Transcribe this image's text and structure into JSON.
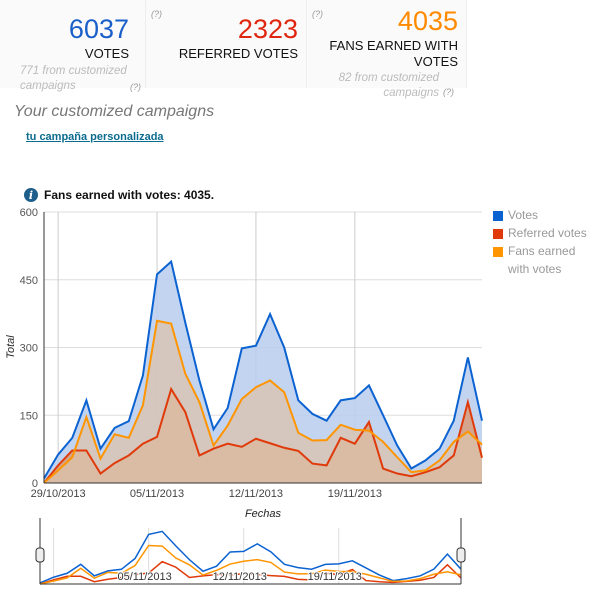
{
  "stats": [
    {
      "value": "6037",
      "label": "VOTES",
      "sub": "771 from customized campaigns",
      "help": "(?)",
      "color": "#1a5fc9"
    },
    {
      "value": "2323",
      "label": "REFERRED VOTES",
      "help": "(?)",
      "color": "#e0260f"
    },
    {
      "value": "4035",
      "label": "FANS EARNED WITH VOTES",
      "sub": "82 from customized campaigns",
      "help": "(?)",
      "help2": "(?)",
      "color": "#ff8a00"
    }
  ],
  "section_title": "Your customized campaigns",
  "campaign_link": "tu campaña personalizada",
  "info_text": "Fans earned with votes: 4035.",
  "icons": {
    "info": "info-icon",
    "handle": "range-handle-icon"
  },
  "chart_data": {
    "type": "area",
    "xlabel": "Fechas",
    "ylabel": "Total",
    "ylim": [
      0,
      600
    ],
    "yticks": [
      0,
      150,
      300,
      450,
      600
    ],
    "x_start": "28/10/2013",
    "x_end": "28/11/2013",
    "xticks": [
      "29/10/2013",
      "05/11/2013",
      "12/11/2013",
      "19/11/2013"
    ],
    "grid": true,
    "legend": "right",
    "series": [
      {
        "name": "Votes",
        "color": "#0b62d1",
        "fill": "#b9cdef",
        "values": [
          10,
          63,
          100,
          183,
          76,
          122,
          137,
          238,
          462,
          490,
          355,
          227,
          119,
          166,
          298,
          304,
          374,
          300,
          183,
          153,
          138,
          183,
          188,
          216,
          150,
          83,
          32,
          50,
          76,
          138,
          278,
          138
        ]
      },
      {
        "name": "Referred votes",
        "color": "#e03a0a",
        "fill": "#d9956a",
        "values": [
          0,
          39,
          72,
          72,
          21,
          44,
          61,
          87,
          102,
          208,
          157,
          61,
          76,
          87,
          80,
          98,
          88,
          78,
          71,
          43,
          39,
          100,
          87,
          135,
          32,
          21,
          15,
          24,
          35,
          61,
          179,
          56
        ]
      },
      {
        "name": "Fans earned with votes",
        "color": "#ff9500",
        "fill": "#dcc3ac",
        "values": [
          0,
          28,
          57,
          146,
          54,
          108,
          100,
          172,
          359,
          353,
          242,
          179,
          83,
          127,
          186,
          212,
          227,
          201,
          111,
          94,
          95,
          129,
          118,
          116,
          91,
          57,
          24,
          28,
          50,
          91,
          114,
          85
        ]
      }
    ]
  }
}
